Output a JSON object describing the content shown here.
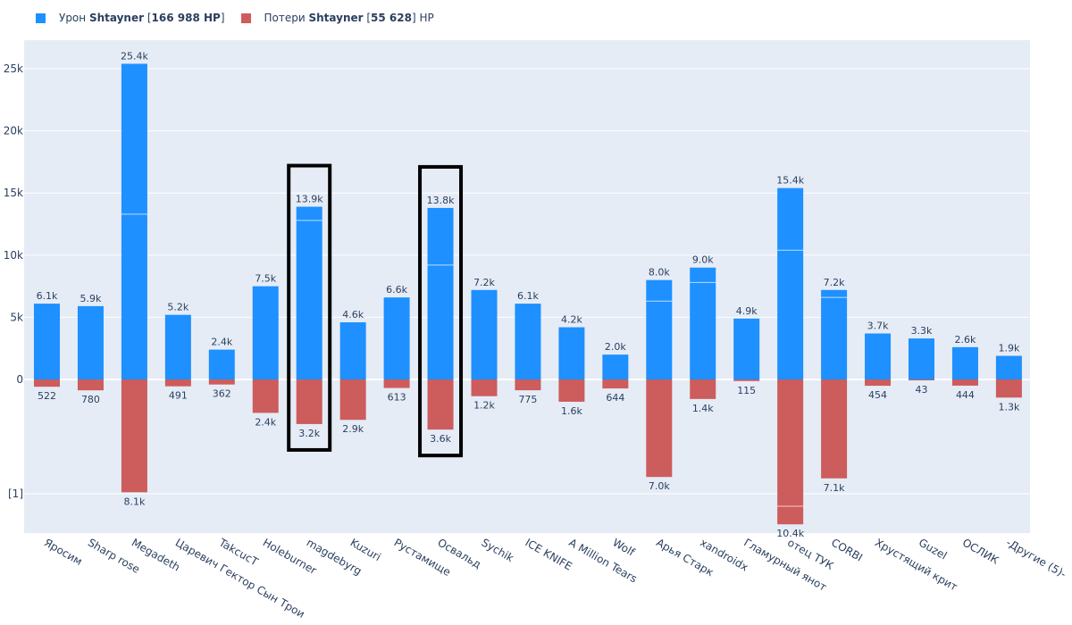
{
  "chart_data": {
    "type": "bar",
    "legend_position": "top-left",
    "grid": true,
    "y_tick_labels": [
      "0",
      "5k",
      "10k",
      "15k",
      "20k",
      "25k"
    ],
    "y_extra_tick_label": "[1]",
    "series": [
      {
        "legend_parts": [
          "Урон ",
          "Shtayner",
          " [",
          "166 988 HP",
          "]"
        ],
        "color": "#1e90ff",
        "values": [
          6100,
          5900,
          25400,
          5200,
          2400,
          7500,
          13900,
          4600,
          6600,
          13800,
          7200,
          6100,
          4200,
          2000,
          8000,
          9000,
          4900,
          15400,
          7200,
          3700,
          3300,
          2600,
          1900
        ],
        "labels": [
          "6.1k",
          "5.9k",
          "25.4k",
          "5.2k",
          "2.4k",
          "7.5k",
          "13.9k",
          "4.6k",
          "6.6k",
          "13.8k",
          "7.2k",
          "6.1k",
          "4.2k",
          "2.0k",
          "8.0k",
          "9.0k",
          "4.9k",
          "15.4k",
          "7.2k",
          "3.7k",
          "3.3k",
          "2.6k",
          "1.9k"
        ],
        "segment_lines": [
          null,
          null,
          13300,
          null,
          null,
          null,
          12800,
          null,
          null,
          9200,
          null,
          null,
          null,
          null,
          6300,
          7800,
          null,
          10400,
          6600,
          null,
          null,
          null,
          null
        ]
      },
      {
        "legend_parts": [
          "Потери ",
          "Shtayner",
          " [",
          "55 628",
          "] HP"
        ],
        "color": "#cd5c5c",
        "values": [
          522,
          780,
          8100,
          491,
          362,
          2400,
          3200,
          2900,
          613,
          3600,
          1200,
          775,
          1600,
          644,
          7000,
          1400,
          115,
          10400,
          7100,
          454,
          43,
          444,
          1300
        ],
        "labels": [
          "522",
          "780",
          "8.1k",
          "491",
          "362",
          "2.4k",
          "3.2k",
          "2.9k",
          "613",
          "3.6k",
          "1.2k",
          "775",
          "1.6k",
          "644",
          "7.0k",
          "1.4k",
          "115",
          "10.4k",
          "7.1k",
          "454",
          "43",
          "444",
          "1.3k"
        ],
        "segment_lines": [
          null,
          null,
          null,
          null,
          null,
          null,
          null,
          null,
          null,
          null,
          null,
          null,
          null,
          null,
          null,
          null,
          null,
          9100,
          null,
          null,
          null,
          null,
          null
        ]
      }
    ],
    "categories": [
      "Яросим",
      "Sharp rose",
      "Megadeth",
      "Царевич Гектор Сын Трои",
      "TakcucT",
      "Holeburner",
      "magdebyrg",
      "Kuzuri",
      "Рустамище",
      "Освальд",
      "Sychik",
      "ICE KNIFE",
      "A Million Tears",
      "Wolf",
      "Арья Старк",
      "xandroidx",
      "Гламурный янот",
      "отец ТУК",
      "CORBI",
      "Хрустящий крит",
      "Guzel",
      "ОСЛИК",
      "-Другие (5)-"
    ],
    "highlighted_categories": [
      "magdebyrg",
      "Освальд"
    ]
  }
}
